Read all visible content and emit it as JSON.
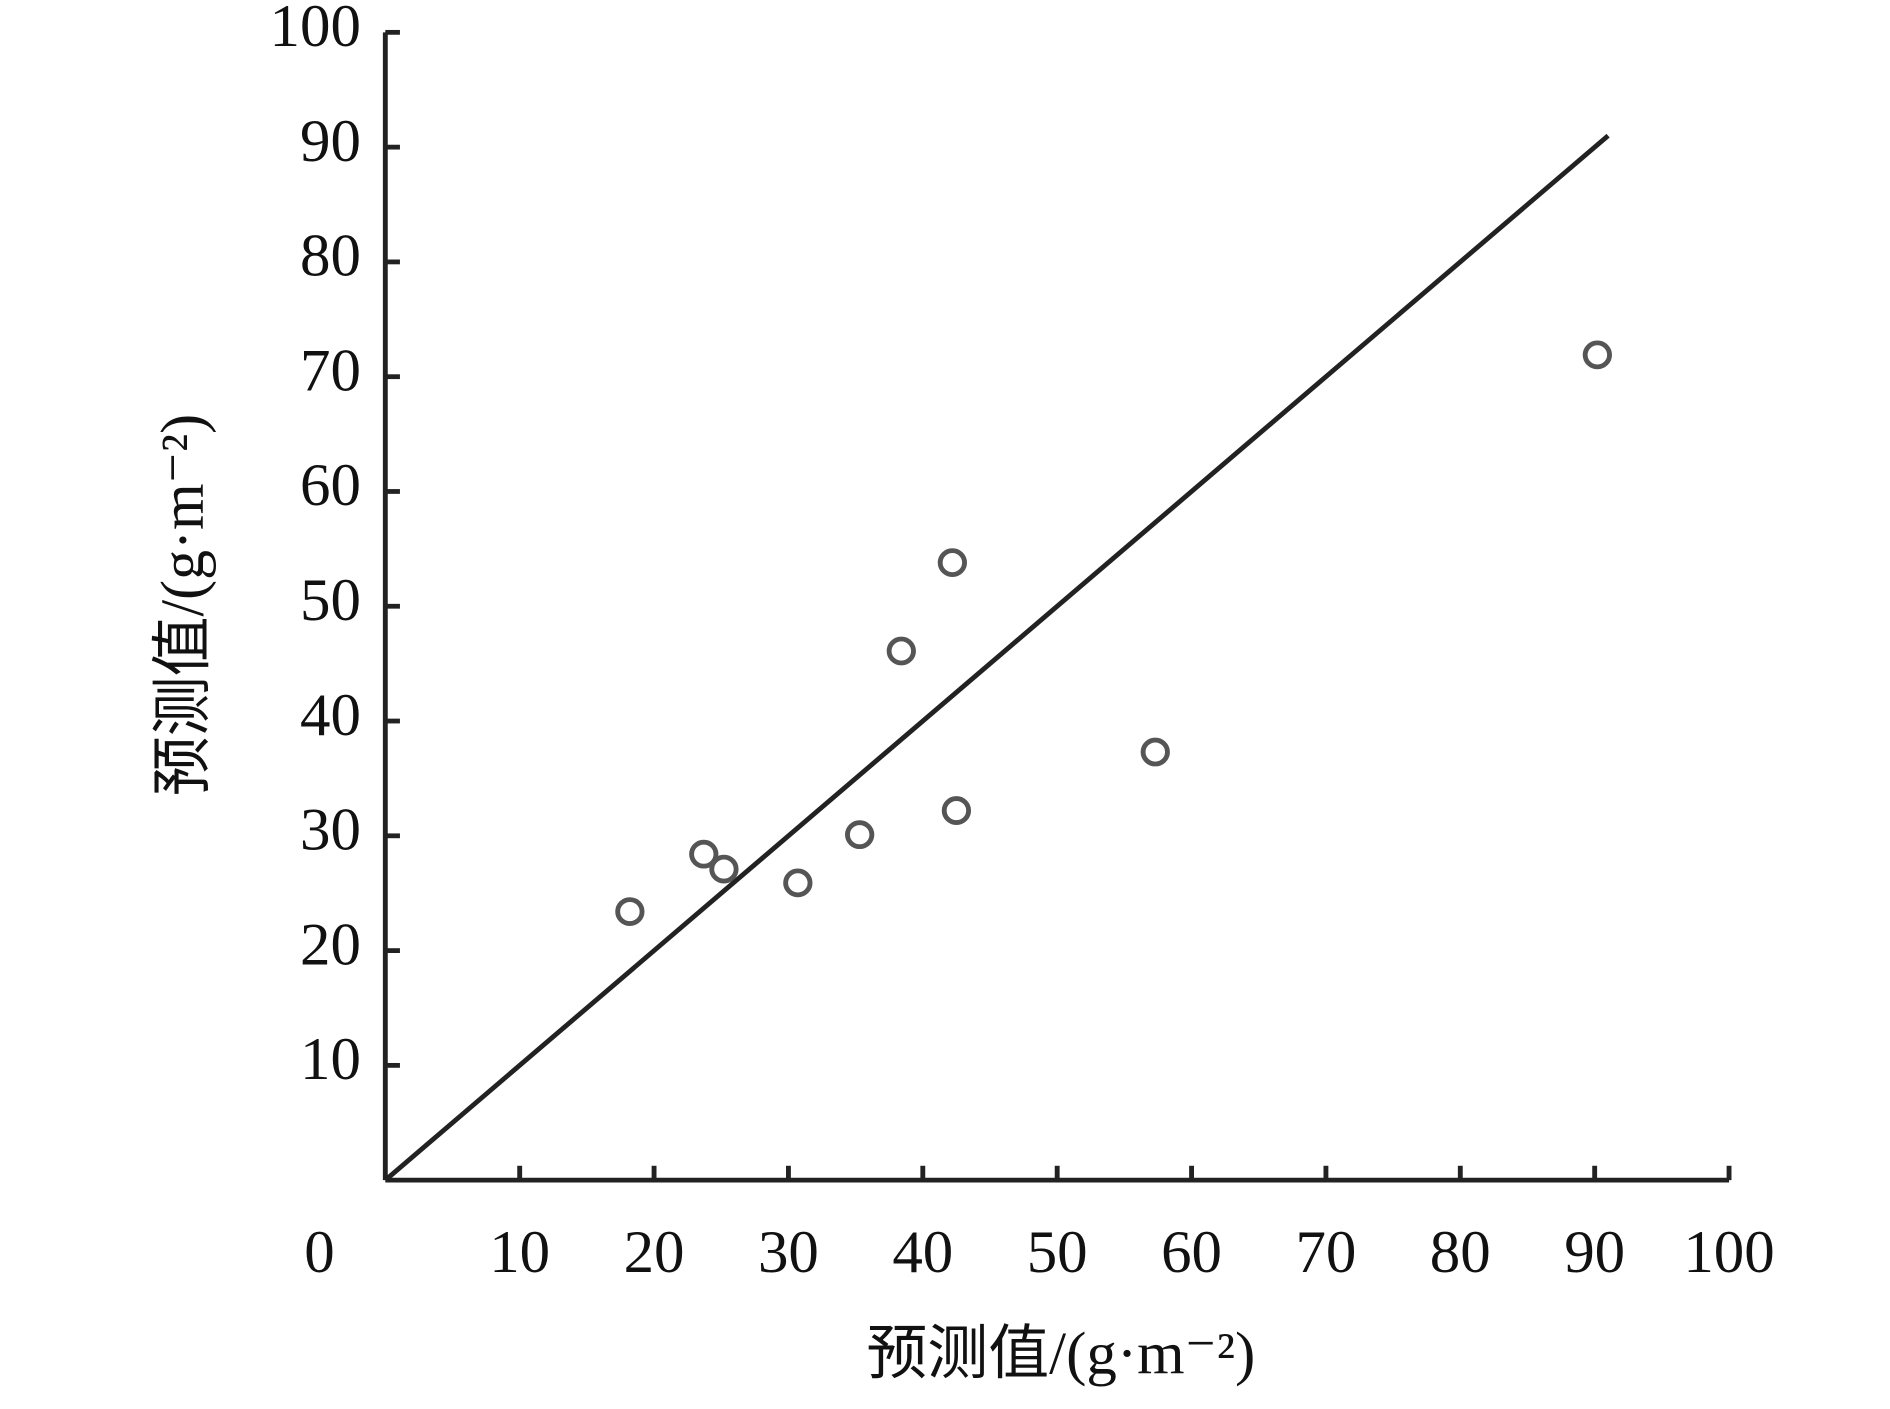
{
  "chart_data": {
    "type": "scatter",
    "x_label": "预测值/(g·m⁻²)",
    "y_label": "预测值/(g·m⁻²)",
    "x": [
      18.2,
      23.7,
      25.2,
      30.7,
      35.3,
      38.4,
      42.2,
      42.5,
      57.3,
      90.2
    ],
    "values": [
      23.4,
      28.4,
      27.1,
      25.9,
      30.1,
      46.1,
      53.8,
      32.2,
      37.3,
      71.9
    ],
    "color": "#555555",
    "fit_line": {
      "x": [
        0,
        91
      ],
      "values": [
        0,
        91
      ],
      "color": "#222222"
    },
    "xlim": [
      0,
      100
    ],
    "ylim": [
      0,
      100
    ],
    "xticks": [
      0,
      10,
      20,
      30,
      40,
      50,
      60,
      70,
      80,
      90,
      100
    ],
    "yticks": [
      10,
      20,
      30,
      40,
      50,
      60,
      70,
      80,
      90,
      100
    ]
  }
}
